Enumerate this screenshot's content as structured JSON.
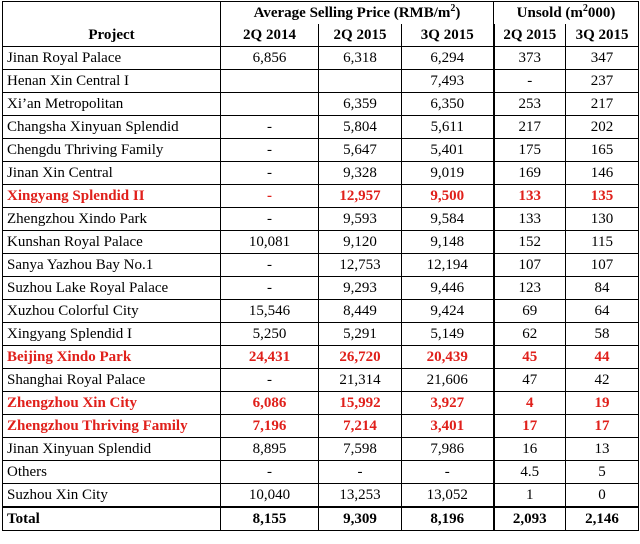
{
  "header": {
    "price_group": "Average Selling Price (RMB/m",
    "price_group_sup": "2",
    "price_group_end": ")",
    "unsold_group": "Unsold (m",
    "unsold_group_sup": "2",
    "unsold_group_end": "000)",
    "project": "Project",
    "cols": [
      "2Q 2014",
      "2Q 2015",
      "3Q 2015",
      "2Q 2015",
      "3Q 2015"
    ]
  },
  "rows": [
    {
      "name": "Jinan Royal Palace",
      "v": [
        "6,856",
        "6,318",
        "6,294",
        "373",
        "347"
      ],
      "hl": false
    },
    {
      "name": "Henan Xin Central I",
      "v": [
        "",
        "",
        "7,493",
        "-",
        "237"
      ],
      "hl": false
    },
    {
      "name": "Xi’an Metropolitan",
      "v": [
        "",
        "6,359",
        "6,350",
        "253",
        "217"
      ],
      "hl": false
    },
    {
      "name": "Changsha Xinyuan Splendid",
      "v": [
        "-",
        "5,804",
        "5,611",
        "217",
        "202"
      ],
      "hl": false
    },
    {
      "name": "Chengdu Thriving Family",
      "v": [
        "-",
        "5,647",
        "5,401",
        "175",
        "165"
      ],
      "hl": false
    },
    {
      "name": "Jinan Xin Central",
      "v": [
        "-",
        "9,328",
        "9,019",
        "169",
        "146"
      ],
      "hl": false
    },
    {
      "name": "Xingyang Splendid II",
      "v": [
        "-",
        "12,957",
        "9,500",
        "133",
        "135"
      ],
      "hl": true
    },
    {
      "name": "Zhengzhou Xindo Park",
      "v": [
        "-",
        "9,593",
        "9,584",
        "133",
        "130"
      ],
      "hl": false
    },
    {
      "name": "Kunshan Royal Palace",
      "v": [
        "10,081",
        "9,120",
        "9,148",
        "152",
        "115"
      ],
      "hl": false
    },
    {
      "name": "Sanya Yazhou Bay No.1",
      "v": [
        "-",
        "12,753",
        "12,194",
        "107",
        "107"
      ],
      "hl": false
    },
    {
      "name": "Suzhou Lake Royal Palace",
      "v": [
        "-",
        "9,293",
        "9,446",
        "123",
        "84"
      ],
      "hl": false
    },
    {
      "name": "Xuzhou Colorful City",
      "v": [
        "15,546",
        "8,449",
        "9,424",
        "69",
        "64"
      ],
      "hl": false
    },
    {
      "name": "Xingyang Splendid I",
      "v": [
        "5,250",
        "5,291",
        "5,149",
        "62",
        "58"
      ],
      "hl": false
    },
    {
      "name": "Beijing Xindo Park",
      "v": [
        "24,431",
        "26,720",
        "20,439",
        "45",
        "44"
      ],
      "hl": true
    },
    {
      "name": "Shanghai Royal Palace",
      "v": [
        "-",
        "21,314",
        "21,606",
        "47",
        "42"
      ],
      "hl": false
    },
    {
      "name": "Zhengzhou Xin City",
      "v": [
        "6,086",
        "15,992",
        "3,927",
        "4",
        "19"
      ],
      "hl": true
    },
    {
      "name": "Zhengzhou Thriving Family",
      "v": [
        "7,196",
        "7,214",
        "3,401",
        "17",
        "17"
      ],
      "hl": true
    },
    {
      "name": "Jinan Xinyuan Splendid",
      "v": [
        "8,895",
        "7,598",
        "7,986",
        "16",
        "13"
      ],
      "hl": false
    },
    {
      "name": "Others",
      "v": [
        "-",
        "-",
        "-",
        "4.5",
        "5"
      ],
      "hl": false
    },
    {
      "name": "Suzhou Xin City",
      "v": [
        "10,040",
        "13,253",
        "13,052",
        "1",
        "0"
      ],
      "hl": false
    }
  ],
  "total": {
    "name": "Total",
    "v": [
      "8,155",
      "9,309",
      "8,196",
      "2,093",
      "2,146"
    ]
  },
  "colors": {
    "highlight": "#e0201b"
  }
}
